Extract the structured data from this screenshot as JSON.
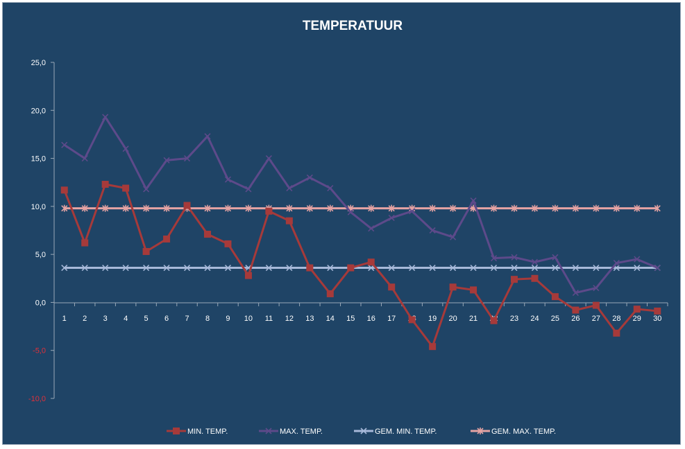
{
  "chart_data": {
    "type": "line",
    "title": "TEMPERATUUR",
    "xlabel": "",
    "ylabel": "",
    "categories": [
      "1",
      "2",
      "3",
      "4",
      "5",
      "6",
      "7",
      "8",
      "9",
      "10",
      "11",
      "12",
      "13",
      "14",
      "15",
      "16",
      "17",
      "18",
      "19",
      "20",
      "21",
      "22",
      "23",
      "24",
      "25",
      "26",
      "27",
      "28",
      "29",
      "30"
    ],
    "ylim": [
      -10,
      25
    ],
    "yticks": [
      25,
      20,
      15,
      10,
      5,
      0,
      -5,
      -10
    ],
    "ytick_labels": [
      "25,0",
      "20,0",
      "15,0",
      "10,0",
      "5,0",
      "0,0",
      "-5,0",
      "-10,0"
    ],
    "grid": false,
    "legend_position": "bottom",
    "series": [
      {
        "name": "MIN. TEMP.",
        "color": "#a63a3a",
        "marker": "square",
        "values": [
          11.7,
          6.2,
          12.3,
          11.9,
          5.3,
          6.6,
          10.1,
          7.1,
          6.1,
          2.8,
          9.5,
          8.5,
          3.6,
          0.9,
          3.6,
          4.2,
          1.6,
          -1.8,
          -4.6,
          1.6,
          1.3,
          -1.9,
          2.4,
          2.5,
          0.6,
          -0.8,
          -0.3,
          -3.2,
          -0.7,
          -0.9
        ]
      },
      {
        "name": "MAX. TEMP.",
        "color": "#5d4a8a",
        "marker": "x",
        "values": [
          16.4,
          15.0,
          19.3,
          16.0,
          11.8,
          14.8,
          15.0,
          17.3,
          12.8,
          11.8,
          15.0,
          11.9,
          13.0,
          11.9,
          9.4,
          7.7,
          8.8,
          9.5,
          7.5,
          6.8,
          10.6,
          4.6,
          4.7,
          4.2,
          4.7,
          1.0,
          1.5,
          4.1,
          4.5,
          3.6
        ]
      },
      {
        "name": "GEM.  MIN. TEMP.",
        "color": "#a7b9d9",
        "marker": "x",
        "values": [
          3.6,
          3.6,
          3.6,
          3.6,
          3.6,
          3.6,
          3.6,
          3.6,
          3.6,
          3.6,
          3.6,
          3.6,
          3.6,
          3.6,
          3.6,
          3.6,
          3.6,
          3.6,
          3.6,
          3.6,
          3.6,
          3.6,
          3.6,
          3.6,
          3.6,
          3.6,
          3.6,
          3.6,
          3.6,
          3.6
        ]
      },
      {
        "name": "GEM. MAX. TEMP.",
        "color": "#e5a3a3",
        "marker": "star",
        "values": [
          9.8,
          9.8,
          9.8,
          9.8,
          9.8,
          9.8,
          9.8,
          9.8,
          9.8,
          9.8,
          9.8,
          9.8,
          9.8,
          9.8,
          9.8,
          9.8,
          9.8,
          9.8,
          9.8,
          9.8,
          9.8,
          9.8,
          9.8,
          9.8,
          9.8,
          9.8,
          9.8,
          9.8,
          9.8,
          9.8
        ]
      }
    ]
  }
}
